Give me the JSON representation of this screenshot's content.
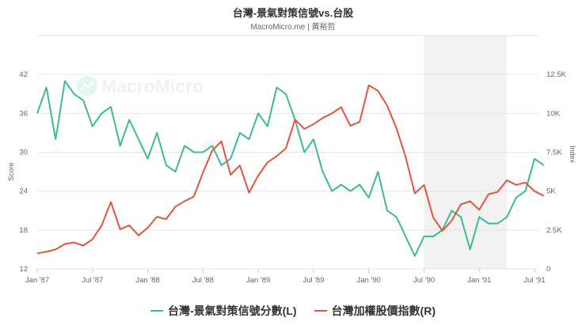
{
  "title": "台灣-景氣對策信號vs.台股",
  "subtitle": "MacroMicro.me | 黃裕哲",
  "watermark": "MacroMicro",
  "chart_data": {
    "type": "line",
    "x_start": "1987-01",
    "x_frequency": "monthly",
    "x_ticks": [
      "Jan '87",
      "Jul '87",
      "Jan '88",
      "Jul '88",
      "Jan '89",
      "Jul '89",
      "Jan '90",
      "Jul '90",
      "Jan '91",
      "Jul '91"
    ],
    "left_axis": {
      "label": "Score",
      "ticks": [
        "12",
        "18",
        "24",
        "30",
        "36",
        "42"
      ],
      "range": [
        12,
        48
      ]
    },
    "right_axis": {
      "label": "Index",
      "ticks": [
        "0",
        "2.5K",
        "5K",
        "7.5K",
        "10K",
        "12.5K"
      ],
      "range": [
        0,
        15000
      ]
    },
    "shaded_band": {
      "from": "1990-07",
      "to": "1991-04",
      "color": "#f2f2f2"
    },
    "grid": true,
    "legend_placement": "bottom",
    "series": [
      {
        "name": "台灣-景氣對策信號分數(L)",
        "axis": "left",
        "color": "#3dbb8f",
        "values": [
          36,
          40,
          32,
          41,
          39,
          38,
          34,
          36,
          37,
          31,
          35,
          32,
          29,
          33,
          28,
          27,
          31,
          30,
          30,
          31,
          28,
          29,
          33,
          32,
          36,
          34,
          40,
          39,
          35,
          30,
          32,
          27,
          24,
          25,
          24,
          25,
          23,
          27,
          21,
          20,
          17,
          14,
          17,
          17,
          18,
          21,
          20,
          15,
          20,
          19,
          19,
          20,
          23,
          24,
          29,
          28
        ]
      },
      {
        "name": "台灣加權股價指數(R)",
        "axis": "right",
        "color": "#e0553c",
        "values": [
          1000,
          1100,
          1250,
          1600,
          1700,
          1500,
          1900,
          2800,
          4300,
          2550,
          2800,
          2150,
          2650,
          3350,
          3200,
          4000,
          4350,
          4650,
          6200,
          7600,
          8200,
          6050,
          6650,
          4900,
          6000,
          6850,
          7250,
          7750,
          9600,
          9000,
          9300,
          9700,
          10000,
          10400,
          9200,
          9450,
          11800,
          11450,
          10500,
          9050,
          7200,
          4850,
          5400,
          3300,
          2450,
          3100,
          4150,
          4350,
          3800,
          4800,
          4950,
          5700,
          5400,
          5550,
          5000,
          4700
        ]
      }
    ]
  }
}
